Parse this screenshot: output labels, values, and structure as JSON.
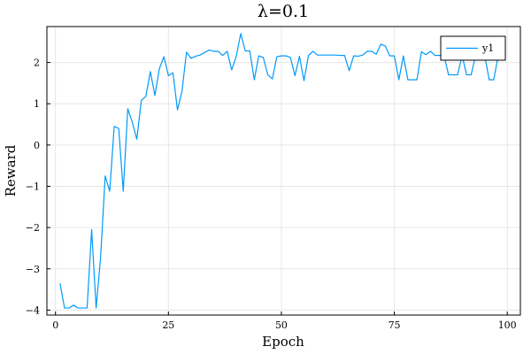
{
  "chart_data": {
    "type": "line",
    "title": "λ=0.1",
    "xlabel": "Epoch",
    "ylabel": "Reward",
    "xlim": [
      -1.9,
      102.9
    ],
    "ylim": [
      -4.12,
      2.87
    ],
    "xticks": [
      0,
      25,
      50,
      75,
      100
    ],
    "xtick_labels": [
      "0",
      "25",
      "50",
      "75",
      "100"
    ],
    "yticks": [
      -4,
      -3,
      -2,
      -1,
      0,
      1,
      2
    ],
    "ytick_labels": [
      "−4",
      "−3",
      "−2",
      "−1",
      "0",
      "1",
      "2"
    ],
    "grid": true,
    "legend_position": "top-right",
    "series": [
      {
        "name": "y1",
        "color": "#009af9",
        "x": [
          1,
          2,
          3,
          4,
          5,
          6,
          7,
          8,
          9,
          10,
          11,
          12,
          13,
          14,
          15,
          16,
          17,
          18,
          19,
          20,
          21,
          22,
          23,
          24,
          25,
          26,
          27,
          28,
          29,
          30,
          31,
          32,
          33,
          34,
          35,
          36,
          37,
          38,
          39,
          40,
          41,
          42,
          43,
          44,
          45,
          46,
          47,
          48,
          49,
          50,
          51,
          52,
          53,
          54,
          55,
          56,
          57,
          58,
          59,
          60,
          61,
          62,
          63,
          64,
          65,
          66,
          67,
          68,
          69,
          70,
          71,
          72,
          73,
          74,
          75,
          76,
          77,
          78,
          79,
          80,
          81,
          82,
          83,
          84,
          85,
          86,
          87,
          88,
          89,
          90,
          91,
          92,
          93,
          94,
          95,
          96,
          97,
          98
        ],
        "values": [
          -3.35,
          -3.95,
          -3.95,
          -3.88,
          -3.95,
          -3.95,
          -3.95,
          -2.05,
          -3.95,
          -2.7,
          -0.75,
          -1.12,
          0.45,
          0.4,
          -1.12,
          0.88,
          0.55,
          0.14,
          1.08,
          1.18,
          1.78,
          1.2,
          1.85,
          2.14,
          1.68,
          1.75,
          0.85,
          1.3,
          2.25,
          2.1,
          2.15,
          2.18,
          2.24,
          2.3,
          2.27,
          2.27,
          2.17,
          2.27,
          1.82,
          2.14,
          2.7,
          2.28,
          2.28,
          1.58,
          2.16,
          2.12,
          1.7,
          1.6,
          2.14,
          2.16,
          2.16,
          2.12,
          1.68,
          2.15,
          1.56,
          2.17,
          2.27,
          2.18,
          2.18,
          2.18,
          2.18,
          2.18,
          2.17,
          2.17,
          1.8,
          2.16,
          2.15,
          2.18,
          2.27,
          2.27,
          2.2,
          2.44,
          2.4,
          2.16,
          2.16,
          1.58,
          2.16,
          1.58,
          1.58,
          1.58,
          2.26,
          2.19,
          2.27,
          2.17,
          2.17,
          2.17,
          1.7,
          1.7,
          1.7,
          2.17,
          1.7,
          1.7,
          2.17,
          2.17,
          2.17,
          1.58,
          1.58,
          2.17
        ]
      }
    ]
  }
}
